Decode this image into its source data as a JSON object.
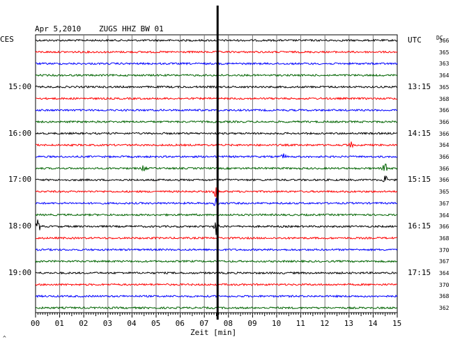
{
  "header": {
    "date": "Apr 5,2010",
    "station": "ZUGS HHZ BW 01",
    "left_tz": "CES",
    "right_tz": "UTC",
    "dc_label": "DC"
  },
  "chart_data": {
    "type": "line",
    "title": "Apr 5,2010   ZUGS HHZ BW 01",
    "xlabel": "Zeit [min]",
    "xlim": [
      0,
      15
    ],
    "x_ticks": [
      "00",
      "01",
      "02",
      "03",
      "04",
      "05",
      "06",
      "07",
      "08",
      "09",
      "10",
      "11",
      "12",
      "13",
      "14",
      "15"
    ],
    "trace_colors": [
      "#000000",
      "#ff0000",
      "#0000ff",
      "#006400"
    ],
    "row_count": 24,
    "left_time_labels": [
      {
        "row": 4,
        "text": "15:00"
      },
      {
        "row": 8,
        "text": "16:00"
      },
      {
        "row": 12,
        "text": "17:00"
      },
      {
        "row": 16,
        "text": "18:00"
      },
      {
        "row": 20,
        "text": "19:00"
      }
    ],
    "right_time_labels": [
      {
        "row": 0,
        "text": "UTC"
      },
      {
        "row": 4,
        "text": "13:15"
      },
      {
        "row": 8,
        "text": "14:15"
      },
      {
        "row": 12,
        "text": "15:15"
      },
      {
        "row": 16,
        "text": "16:15"
      },
      {
        "row": 20,
        "text": "17:15"
      }
    ],
    "dc_values": [
      "366",
      "365",
      "363",
      "364",
      "365",
      "368",
      "366",
      "366",
      "366",
      "364",
      "366",
      "366",
      "366",
      "365",
      "367",
      "364",
      "366",
      "368",
      "370",
      "367",
      "364",
      "370",
      "368",
      "362"
    ],
    "events": [
      {
        "row": 13,
        "minute": 7.5,
        "amplitude": "large"
      },
      {
        "row": 14,
        "minute": 7.5,
        "amplitude": "large"
      },
      {
        "row": 16,
        "minute": 7.5,
        "amplitude": "large"
      },
      {
        "row": 11,
        "minute": 14.5,
        "amplitude": "medium"
      },
      {
        "row": 12,
        "minute": 14.5,
        "amplitude": "medium"
      },
      {
        "row": 16,
        "minute": 0.1,
        "amplitude": "medium"
      },
      {
        "row": 9,
        "minute": 13.1,
        "amplitude": "small"
      },
      {
        "row": 11,
        "minute": 4.5,
        "amplitude": "small"
      },
      {
        "row": 10,
        "minute": 10.3,
        "amplitude": "small"
      }
    ],
    "marker_minute": 7.55
  },
  "footer_glyph": "^"
}
